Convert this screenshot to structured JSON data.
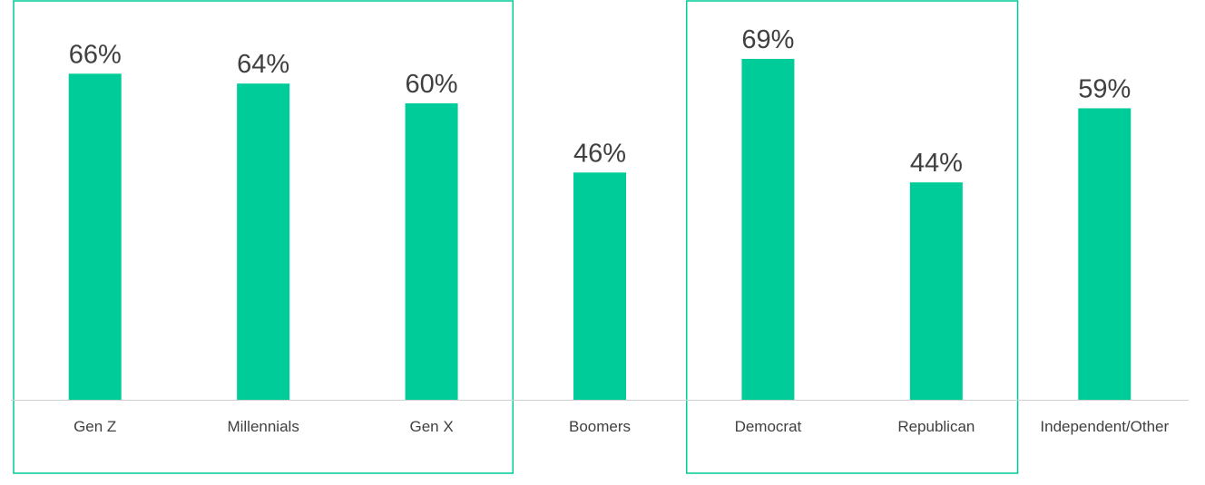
{
  "chart_data": {
    "type": "bar",
    "title": "",
    "xlabel": "",
    "ylabel": "",
    "categories": [
      "Gen Z",
      "Millennials",
      "Gen X",
      "Boomers",
      "Democrat",
      "Republican",
      "Independent/Other"
    ],
    "values": [
      66,
      64,
      60,
      46,
      69,
      44,
      59
    ],
    "data_labels": [
      "66%",
      "64%",
      "60%",
      "46%",
      "69%",
      "44%",
      "59%"
    ],
    "ylim": [
      0,
      72
    ],
    "grid": false,
    "legend": "none",
    "bar_color": "#00CC99",
    "highlight_box_color": "#00CC99",
    "highlight_groups": [
      {
        "categories": [
          "Gen Z",
          "Millennials",
          "Gen X"
        ]
      },
      {
        "categories": [
          "Democrat",
          "Republican"
        ]
      }
    ]
  }
}
